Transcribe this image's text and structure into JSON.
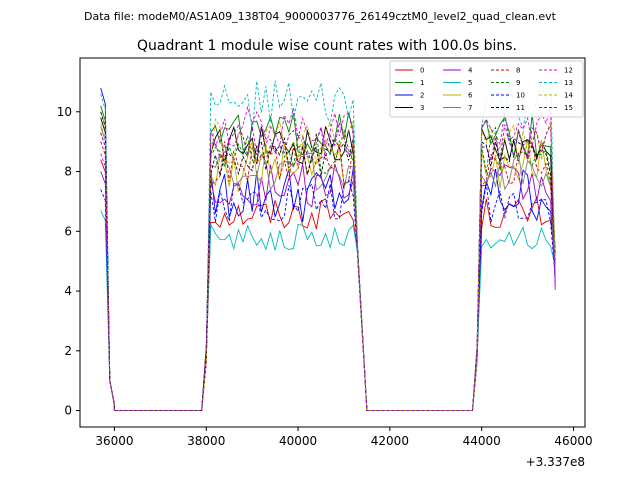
{
  "figure": {
    "suptitle": "Data file: modeM0/AS1A09_138T04_9000003776_26149cztM0_level2_quad_clean.evt"
  },
  "chart_data": {
    "type": "line",
    "title": "Quadrant 1 module wise count rates with 100.0s bins.",
    "xlabel": "",
    "ylabel": "",
    "x_offset_label": "+3.337e8",
    "xlim": [
      35250,
      46250
    ],
    "ylim": [
      -0.55,
      11.8
    ],
    "xticks": [
      36000,
      38000,
      40000,
      42000,
      44000,
      46000
    ],
    "xtick_labels": [
      "36000",
      "38000",
      "40000",
      "42000",
      "44000",
      "46000"
    ],
    "yticks": [
      0,
      2,
      4,
      6,
      8,
      10
    ],
    "ytick_labels": [
      "0",
      "2",
      "4",
      "6",
      "8",
      "10"
    ],
    "grid": false,
    "legend": {
      "placement": "top-right",
      "ncol": 4
    },
    "segments": [
      {
        "x_start": 35700,
        "x_end": 36000,
        "edge": "start"
      },
      {
        "x_start": 36000,
        "x_end": 37900,
        "edge": "zero"
      },
      {
        "x_start": 38000,
        "x_end": 41300,
        "edge": "full"
      },
      {
        "x_start": 41500,
        "x_end": 43800,
        "edge": "zero"
      },
      {
        "x_start": 43900,
        "x_end": 45600,
        "edge": "full"
      }
    ],
    "series": [
      {
        "name": "0",
        "color": "#e00000",
        "dash": "solid",
        "level": 6.6,
        "jitter": 0.25,
        "start": 8.4
      },
      {
        "name": "1",
        "color": "#008000",
        "dash": "solid",
        "level": 9.2,
        "jitter": 0.35,
        "start": 10.2
      },
      {
        "name": "2",
        "color": "#0000ff",
        "dash": "solid",
        "level": 7.2,
        "jitter": 0.45,
        "start": 10.8
      },
      {
        "name": "3",
        "color": "#000000",
        "dash": "solid",
        "level": 8.9,
        "jitter": 0.3,
        "start": 9.8
      },
      {
        "name": "4",
        "color": "#a000c0",
        "dash": "solid",
        "level": 7.5,
        "jitter": 0.35,
        "start": 8.0
      },
      {
        "name": "5",
        "color": "#00bbbb",
        "dash": "solid",
        "level": 5.8,
        "jitter": 0.2,
        "start": 6.7
      },
      {
        "name": "6",
        "color": "#c0b000",
        "dash": "solid",
        "level": 8.2,
        "jitter": 0.4,
        "start": 10.0
      },
      {
        "name": "7",
        "color": "#808080",
        "dash": "solid",
        "level": 8.0,
        "jitter": 0.3,
        "start": 9.5
      },
      {
        "name": "8",
        "color": "#e00000",
        "dash": "dashed",
        "level": 8.3,
        "jitter": 0.35,
        "start": 9.0
      },
      {
        "name": "9",
        "color": "#008000",
        "dash": "dashed",
        "level": 8.7,
        "jitter": 0.35,
        "start": 9.3
      },
      {
        "name": "10",
        "color": "#0000ff",
        "dash": "dashed",
        "level": 7.0,
        "jitter": 0.35,
        "start": 7.4
      },
      {
        "name": "11",
        "color": "#000000",
        "dash": "dashed",
        "level": 8.5,
        "jitter": 0.3,
        "start": 10.0
      },
      {
        "name": "12",
        "color": "#e000e0",
        "dash": "dashed",
        "level": 9.5,
        "jitter": 0.3,
        "start": 8.6
      },
      {
        "name": "13",
        "color": "#00bbbb",
        "dash": "dashed",
        "level": 10.2,
        "jitter": 0.4,
        "start": 10.6
      },
      {
        "name": "14",
        "color": "#c0b000",
        "dash": "dashed",
        "level": 9.0,
        "jitter": 0.35,
        "start": 9.6
      },
      {
        "name": "15",
        "color": "#a000c0",
        "dash": "dashed",
        "level": 9.0,
        "jitter": 0.3,
        "start": 9.3
      }
    ]
  }
}
